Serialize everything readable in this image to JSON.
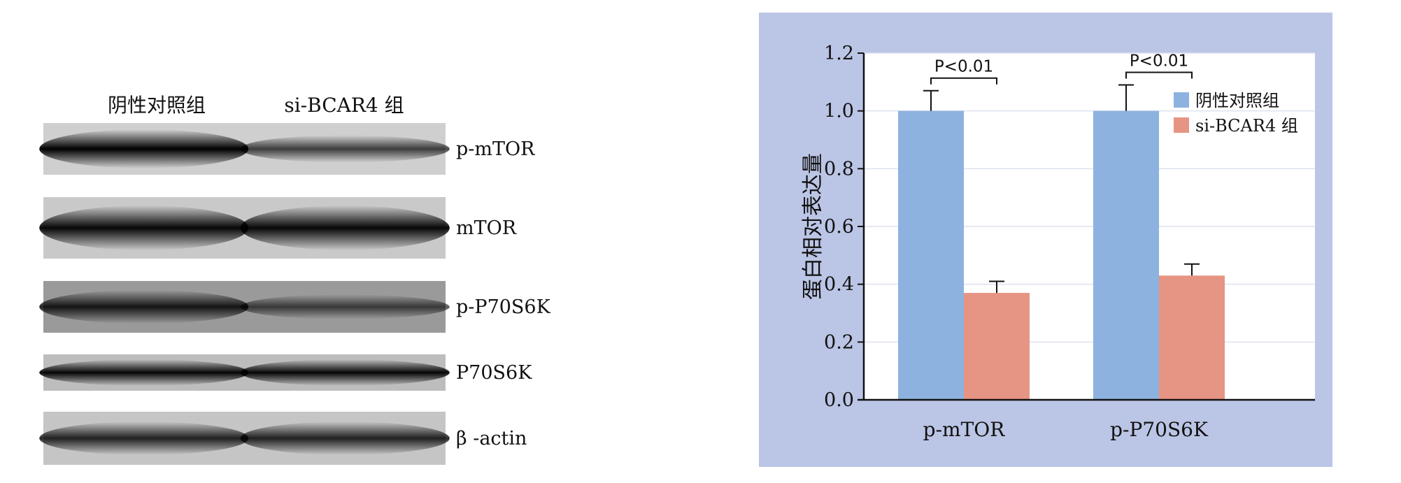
{
  "western_blot": {
    "lane_headers": [
      "阴性对照组",
      "si-BCAR4 组"
    ],
    "bands": [
      {
        "label": "p-mTOR",
        "lane_intensity": [
          1.0,
          0.55
        ]
      },
      {
        "label": "mTOR",
        "lane_intensity": [
          0.95,
          0.95
        ]
      },
      {
        "label": "p-P70S6K",
        "lane_intensity": [
          0.8,
          0.45
        ]
      },
      {
        "label": "P70S6K",
        "lane_intensity": [
          0.95,
          0.95
        ]
      },
      {
        "label": "β -actin",
        "lane_intensity": [
          0.75,
          0.75
        ]
      }
    ]
  },
  "chart_data": {
    "type": "bar",
    "categories": [
      "p-mTOR",
      "p-P70S6K"
    ],
    "series": [
      {
        "name": "阴性对照组",
        "values": [
          1.0,
          1.0
        ],
        "errors": [
          0.07,
          0.09
        ],
        "color": "#8db2df"
      },
      {
        "name": "si-BCAR4 组",
        "values": [
          0.37,
          0.43
        ],
        "errors": [
          0.04,
          0.04
        ],
        "color": "#e69483"
      }
    ],
    "ylabel": "蛋白相对表达量",
    "xlabel": "",
    "ylim": [
      0,
      1.2
    ],
    "yticks": [
      "0.0",
      "0.2",
      "0.4",
      "0.6",
      "0.8",
      "1.0",
      "1.2"
    ],
    "annotations": [
      "P<0.01",
      "P<0.01"
    ],
    "legend_position": "top-right",
    "grid": true,
    "panel_background": "#bbc5e5"
  }
}
